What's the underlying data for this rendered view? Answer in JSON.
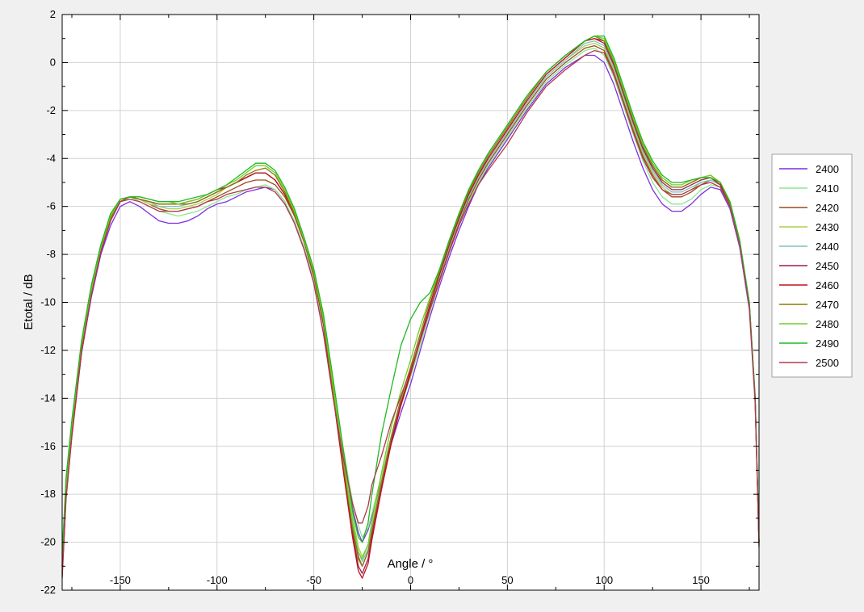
{
  "chart_data": {
    "type": "line",
    "title": "",
    "xlabel": "Angle / °",
    "ylabel": "Etotal / dB",
    "xlim": [
      -180,
      180
    ],
    "ylim": [
      -22,
      2
    ],
    "xticks": [
      -150,
      -100,
      -50,
      0,
      50,
      100,
      150
    ],
    "yticks": [
      -22,
      -20,
      -18,
      -16,
      -14,
      -12,
      -10,
      -8,
      -6,
      -4,
      -2,
      0,
      2
    ],
    "grid": true,
    "legend_position": "right",
    "x": [
      -180,
      -178,
      -175,
      -170,
      -165,
      -160,
      -155,
      -150,
      -145,
      -140,
      -135,
      -130,
      -125,
      -120,
      -115,
      -110,
      -105,
      -100,
      -95,
      -90,
      -85,
      -80,
      -75,
      -70,
      -65,
      -60,
      -55,
      -50,
      -45,
      -40,
      -35,
      -30,
      -27,
      -25,
      -22,
      -20,
      -15,
      -10,
      -5,
      0,
      5,
      10,
      15,
      20,
      25,
      30,
      35,
      40,
      50,
      60,
      70,
      80,
      90,
      95,
      100,
      105,
      110,
      115,
      120,
      125,
      130,
      135,
      140,
      145,
      150,
      155,
      160,
      165,
      170,
      175,
      178,
      180
    ],
    "series": [
      {
        "name": "2400",
        "color": "#7b2fe0",
        "values": [
          -21.3,
          -18.0,
          -15.5,
          -12.1,
          -9.8,
          -8.0,
          -6.8,
          -6.0,
          -5.8,
          -6.0,
          -6.3,
          -6.6,
          -6.7,
          -6.7,
          -6.6,
          -6.4,
          -6.1,
          -5.9,
          -5.8,
          -5.6,
          -5.4,
          -5.3,
          -5.2,
          -5.3,
          -5.8,
          -6.7,
          -7.8,
          -9.2,
          -11.3,
          -13.8,
          -16.2,
          -18.6,
          -19.6,
          -20.0,
          -19.5,
          -18.9,
          -17.4,
          -15.9,
          -14.6,
          -13.4,
          -12.0,
          -10.6,
          -9.3,
          -8.1,
          -7.0,
          -6.0,
          -5.1,
          -4.4,
          -3.2,
          -2.0,
          -0.9,
          -0.2,
          0.3,
          0.3,
          0.0,
          -0.9,
          -2.1,
          -3.3,
          -4.4,
          -5.3,
          -5.9,
          -6.2,
          -6.2,
          -5.9,
          -5.5,
          -5.2,
          -5.3,
          -6.1,
          -7.7,
          -10.3,
          -14.2,
          -20.2
        ]
      },
      {
        "name": "2410",
        "color": "#8ee68e",
        "values": [
          -20.9,
          -17.7,
          -15.2,
          -11.8,
          -9.5,
          -7.7,
          -6.5,
          -5.8,
          -5.6,
          -5.8,
          -6.0,
          -6.2,
          -6.3,
          -6.4,
          -6.3,
          -6.2,
          -6.0,
          -5.8,
          -5.6,
          -5.5,
          -5.3,
          -5.2,
          -5.1,
          -5.3,
          -5.8,
          -6.6,
          -7.7,
          -9.0,
          -11.0,
          -13.6,
          -16.0,
          -18.3,
          -19.3,
          -19.8,
          -19.4,
          -18.8,
          -17.2,
          -15.6,
          -14.3,
          -13.1,
          -11.8,
          -10.4,
          -9.1,
          -7.9,
          -6.8,
          -5.8,
          -5.0,
          -4.3,
          -3.1,
          -1.9,
          -0.8,
          -0.1,
          0.5,
          0.6,
          0.3,
          -0.6,
          -1.8,
          -3.0,
          -4.1,
          -5.0,
          -5.6,
          -5.9,
          -5.9,
          -5.7,
          -5.3,
          -5.1,
          -5.2,
          -6.0,
          -7.6,
          -10.2,
          -14.1,
          -20.1
        ]
      },
      {
        "name": "2420",
        "color": "#9c4a1f",
        "values": [
          -21.0,
          -17.7,
          -15.2,
          -11.8,
          -9.5,
          -7.7,
          -6.5,
          -5.8,
          -5.6,
          -5.7,
          -5.9,
          -6.1,
          -6.2,
          -6.2,
          -6.1,
          -6.0,
          -5.8,
          -5.6,
          -5.4,
          -5.2,
          -5.0,
          -4.9,
          -4.9,
          -5.1,
          -5.6,
          -6.4,
          -7.5,
          -8.9,
          -10.9,
          -13.7,
          -16.5,
          -19.2,
          -20.6,
          -21.0,
          -20.4,
          -19.5,
          -17.6,
          -15.8,
          -14.3,
          -13.0,
          -11.6,
          -10.2,
          -9.0,
          -7.8,
          -6.7,
          -5.7,
          -4.9,
          -4.2,
          -3.0,
          -1.8,
          -0.7,
          0.0,
          0.6,
          0.7,
          0.5,
          -0.4,
          -1.6,
          -2.8,
          -3.9,
          -4.7,
          -5.3,
          -5.6,
          -5.6,
          -5.4,
          -5.1,
          -4.9,
          -5.1,
          -5.9,
          -7.5,
          -10.1,
          -14.0,
          -20.0
        ]
      },
      {
        "name": "2430",
        "color": "#a8d04e",
        "values": [
          -20.8,
          -17.6,
          -15.1,
          -11.7,
          -9.4,
          -7.6,
          -6.4,
          -5.7,
          -5.6,
          -5.7,
          -5.9,
          -6.0,
          -6.1,
          -6.1,
          -6.0,
          -5.9,
          -5.7,
          -5.5,
          -5.2,
          -5.0,
          -4.8,
          -4.6,
          -4.6,
          -4.9,
          -5.5,
          -6.3,
          -7.4,
          -8.8,
          -10.8,
          -13.5,
          -16.3,
          -18.9,
          -20.2,
          -20.6,
          -20.1,
          -19.3,
          -17.4,
          -15.6,
          -14.1,
          -12.9,
          -11.5,
          -10.1,
          -8.9,
          -7.7,
          -6.6,
          -5.6,
          -4.8,
          -4.1,
          -2.9,
          -1.7,
          -0.6,
          0.1,
          0.7,
          0.8,
          0.6,
          -0.3,
          -1.5,
          -2.7,
          -3.8,
          -4.6,
          -5.2,
          -5.5,
          -5.5,
          -5.3,
          -5.0,
          -4.9,
          -5.1,
          -5.9,
          -7.5,
          -10.1,
          -14.0,
          -20.0
        ]
      },
      {
        "name": "2440",
        "color": "#7fc2c2",
        "values": [
          -20.9,
          -17.6,
          -15.1,
          -11.7,
          -9.4,
          -7.6,
          -6.4,
          -5.7,
          -5.6,
          -5.7,
          -5.8,
          -6.0,
          -6.0,
          -6.0,
          -5.9,
          -5.8,
          -5.6,
          -5.4,
          -5.2,
          -5.0,
          -4.8,
          -4.6,
          -4.6,
          -4.9,
          -5.5,
          -6.3,
          -7.4,
          -8.8,
          -10.8,
          -13.6,
          -16.4,
          -19.1,
          -20.4,
          -20.8,
          -20.3,
          -19.4,
          -17.5,
          -15.7,
          -14.2,
          -12.9,
          -11.5,
          -10.1,
          -8.9,
          -7.7,
          -6.6,
          -5.6,
          -4.8,
          -4.1,
          -2.9,
          -1.7,
          -0.6,
          0.1,
          0.8,
          0.9,
          0.7,
          -0.2,
          -1.4,
          -2.6,
          -3.7,
          -4.5,
          -5.1,
          -5.4,
          -5.4,
          -5.2,
          -5.0,
          -4.9,
          -5.1,
          -5.9,
          -7.5,
          -10.1,
          -14.0,
          -20.0
        ]
      },
      {
        "name": "2450",
        "color": "#9e1f55",
        "values": [
          -21.0,
          -17.7,
          -15.2,
          -11.8,
          -9.5,
          -7.7,
          -6.5,
          -5.8,
          -5.6,
          -5.7,
          -5.8,
          -5.9,
          -5.9,
          -5.9,
          -5.9,
          -5.8,
          -5.6,
          -5.4,
          -5.2,
          -5.0,
          -4.8,
          -4.6,
          -4.6,
          -4.9,
          -5.5,
          -6.3,
          -7.4,
          -8.8,
          -10.9,
          -13.8,
          -16.8,
          -19.6,
          -21.0,
          -21.3,
          -20.7,
          -19.7,
          -17.7,
          -15.8,
          -14.2,
          -12.9,
          -11.5,
          -10.1,
          -8.8,
          -7.6,
          -6.5,
          -5.5,
          -4.7,
          -4.0,
          -2.8,
          -1.6,
          -0.5,
          0.2,
          0.9,
          1.0,
          0.8,
          -0.1,
          -1.3,
          -2.5,
          -3.6,
          -4.4,
          -5.0,
          -5.3,
          -5.3,
          -5.1,
          -4.9,
          -4.8,
          -5.1,
          -5.9,
          -7.5,
          -10.1,
          -14.0,
          -20.0
        ]
      },
      {
        "name": "2460",
        "color": "#c0121e",
        "values": [
          -21.5,
          -18.2,
          -15.6,
          -12.1,
          -9.7,
          -7.9,
          -6.6,
          -5.8,
          -5.6,
          -5.7,
          -5.8,
          -5.9,
          -5.9,
          -5.9,
          -5.8,
          -5.7,
          -5.5,
          -5.3,
          -5.2,
          -5.0,
          -4.8,
          -4.6,
          -4.6,
          -4.9,
          -5.5,
          -6.3,
          -7.4,
          -8.8,
          -10.9,
          -13.9,
          -16.9,
          -19.8,
          -21.2,
          -21.5,
          -20.9,
          -19.9,
          -17.8,
          -15.9,
          -14.3,
          -12.9,
          -11.5,
          -10.1,
          -8.8,
          -7.6,
          -6.5,
          -5.5,
          -4.7,
          -4.0,
          -2.8,
          -1.6,
          -0.5,
          0.2,
          0.9,
          1.0,
          0.9,
          0.0,
          -1.2,
          -2.4,
          -3.5,
          -4.3,
          -4.9,
          -5.2,
          -5.2,
          -5.0,
          -4.8,
          -4.8,
          -5.1,
          -5.9,
          -7.5,
          -10.1,
          -14.0,
          -20.0
        ]
      },
      {
        "name": "2470",
        "color": "#8a7a0a",
        "values": [
          -21.2,
          -17.9,
          -15.3,
          -11.9,
          -9.6,
          -7.8,
          -6.5,
          -5.8,
          -5.6,
          -5.7,
          -5.8,
          -5.9,
          -5.9,
          -5.9,
          -5.9,
          -5.8,
          -5.6,
          -5.4,
          -5.2,
          -5.0,
          -4.7,
          -4.5,
          -4.4,
          -4.7,
          -5.4,
          -6.3,
          -7.4,
          -8.8,
          -10.8,
          -13.7,
          -16.6,
          -19.4,
          -20.7,
          -21.0,
          -20.4,
          -19.5,
          -17.5,
          -15.6,
          -14.0,
          -12.7,
          -11.3,
          -9.9,
          -8.7,
          -7.5,
          -6.4,
          -5.4,
          -4.6,
          -3.9,
          -2.7,
          -1.5,
          -0.4,
          0.3,
          0.9,
          1.1,
          0.9,
          0.0,
          -1.2,
          -2.4,
          -3.5,
          -4.3,
          -4.9,
          -5.2,
          -5.2,
          -5.0,
          -4.8,
          -4.7,
          -5.0,
          -5.9,
          -7.5,
          -10.1,
          -14.0,
          -20.0
        ]
      },
      {
        "name": "2480",
        "color": "#6fcf2a",
        "values": [
          -21.0,
          -17.8,
          -15.2,
          -11.8,
          -9.5,
          -7.7,
          -6.4,
          -5.7,
          -5.6,
          -5.6,
          -5.7,
          -5.8,
          -5.8,
          -5.9,
          -5.8,
          -5.7,
          -5.5,
          -5.3,
          -5.1,
          -4.9,
          -4.6,
          -4.3,
          -4.3,
          -4.6,
          -5.3,
          -6.2,
          -7.4,
          -8.7,
          -10.7,
          -13.5,
          -16.4,
          -19.2,
          -20.4,
          -20.7,
          -20.1,
          -19.1,
          -17.1,
          -15.2,
          -13.7,
          -12.4,
          -11.0,
          -9.8,
          -8.6,
          -7.4,
          -6.3,
          -5.3,
          -4.5,
          -3.8,
          -2.6,
          -1.4,
          -0.4,
          0.3,
          0.9,
          1.1,
          1.0,
          0.1,
          -1.1,
          -2.3,
          -3.4,
          -4.2,
          -4.8,
          -5.1,
          -5.1,
          -4.9,
          -4.8,
          -4.7,
          -5.0,
          -5.8,
          -7.4,
          -10.0,
          -13.9,
          -19.9
        ]
      },
      {
        "name": "2490",
        "color": "#22b822",
        "values": [
          -20.5,
          -17.3,
          -14.9,
          -11.6,
          -9.3,
          -7.6,
          -6.3,
          -5.7,
          -5.6,
          -5.6,
          -5.7,
          -5.8,
          -5.8,
          -5.8,
          -5.7,
          -5.6,
          -5.5,
          -5.3,
          -5.1,
          -4.8,
          -4.5,
          -4.2,
          -4.2,
          -4.5,
          -5.2,
          -6.1,
          -7.3,
          -8.6,
          -10.5,
          -13.2,
          -16.0,
          -18.7,
          -19.8,
          -20.0,
          -19.2,
          -18.0,
          -15.5,
          -13.6,
          -11.8,
          -10.7,
          -10.0,
          -9.6,
          -8.6,
          -7.4,
          -6.3,
          -5.3,
          -4.5,
          -3.8,
          -2.6,
          -1.4,
          -0.4,
          0.3,
          0.9,
          1.1,
          1.1,
          0.2,
          -1.0,
          -2.2,
          -3.3,
          -4.1,
          -4.7,
          -5.0,
          -5.0,
          -4.9,
          -4.8,
          -4.8,
          -5.0,
          -5.8,
          -7.4,
          -10.0,
          -13.9,
          -19.9
        ]
      },
      {
        "name": "2500",
        "color": "#b0384e",
        "values": [
          -21.4,
          -18.1,
          -15.5,
          -12.0,
          -9.7,
          -7.9,
          -6.6,
          -5.8,
          -5.7,
          -5.8,
          -6.0,
          -6.2,
          -6.2,
          -6.2,
          -6.1,
          -6.0,
          -5.8,
          -5.7,
          -5.5,
          -5.4,
          -5.3,
          -5.2,
          -5.2,
          -5.4,
          -5.9,
          -6.7,
          -7.8,
          -9.2,
          -11.3,
          -14.0,
          -16.4,
          -18.4,
          -19.2,
          -19.2,
          -18.5,
          -17.6,
          -16.4,
          -15.0,
          -13.9,
          -12.8,
          -11.6,
          -10.3,
          -9.1,
          -7.9,
          -6.8,
          -5.9,
          -5.1,
          -4.5,
          -3.4,
          -2.1,
          -1.0,
          -0.3,
          0.3,
          0.5,
          0.4,
          -0.5,
          -1.7,
          -2.9,
          -4.0,
          -4.8,
          -5.3,
          -5.5,
          -5.5,
          -5.3,
          -5.1,
          -5.0,
          -5.2,
          -6.0,
          -7.6,
          -10.2,
          -14.1,
          -20.1
        ]
      }
    ]
  }
}
